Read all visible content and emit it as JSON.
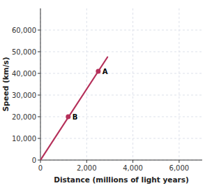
{
  "chart_data": {
    "type": "line",
    "xlabel": "Distance (millions of light years)",
    "ylabel": "Speed (km/s)",
    "xlim": [
      0,
      7000
    ],
    "ylim": [
      0,
      70000
    ],
    "xticks": [
      0,
      {
        "value": 2000,
        "label": "2,000"
      },
      {
        "value": 4000,
        "label": "4,000"
      },
      {
        "value": 6000,
        "label": "6,000"
      }
    ],
    "yticks": [
      0,
      {
        "value": 10000,
        "label": "10,000"
      },
      {
        "value": 20000,
        "label": "20,000"
      },
      {
        "value": 30000,
        "label": "30,000"
      },
      {
        "value": 40000,
        "label": "40,000"
      },
      {
        "value": 50000,
        "label": "50,000"
      },
      {
        "value": 60000,
        "label": "60,000"
      }
    ],
    "grid": true,
    "series": [
      {
        "type": "line",
        "color": "#b5305a",
        "x": [
          0,
          2900
        ],
        "values": [
          0,
          47500
        ]
      },
      {
        "type": "scatter",
        "color": "#b5305a",
        "marker": "circle",
        "x": [
          2500,
          1200
        ],
        "values": [
          41000,
          20000
        ]
      }
    ],
    "annotations": [
      {
        "text": "A",
        "x": 2500,
        "y": 41000
      },
      {
        "text": "B",
        "x": 1200,
        "y": 20000
      }
    ]
  }
}
